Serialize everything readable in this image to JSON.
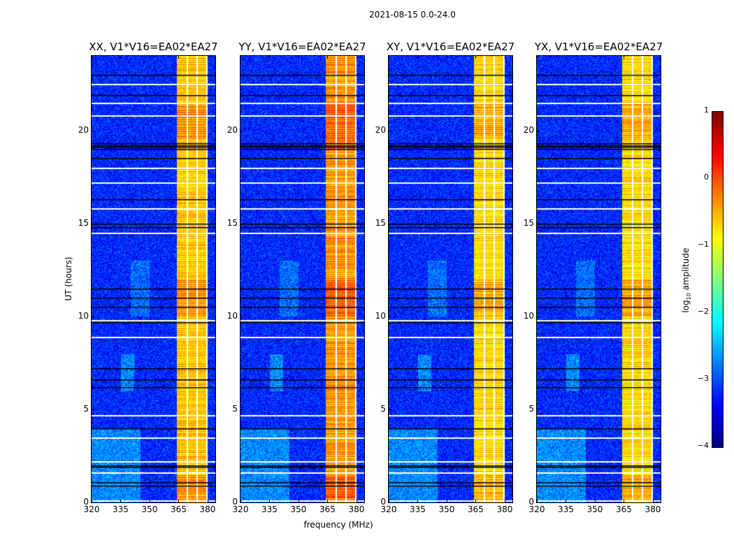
{
  "suptitle": "2021-08-15 0.0-24.0",
  "chart_data": {
    "type": "heatmap",
    "title": "2021-08-15 0.0-24.0",
    "xlabel": "frequency (MHz)",
    "ylabel": "UT (hours)",
    "xlim": [
      320,
      384
    ],
    "ylim": [
      0,
      24
    ],
    "xticks": [
      "320",
      "335",
      "350",
      "365",
      "380"
    ],
    "xtick_values": [
      320,
      335,
      350,
      365,
      380
    ],
    "yticks": [
      "0",
      "5",
      "10",
      "15",
      "20"
    ],
    "ytick_values": [
      0,
      5,
      10,
      15,
      20
    ],
    "panels": [
      {
        "title": "XX, V1*V16=EA02*EA27",
        "band_level": -0.7
      },
      {
        "title": "YY, V1*V16=EA02*EA27",
        "band_level": -0.45
      },
      {
        "title": "XY, V1*V16=EA02*EA27",
        "band_level": -0.8
      },
      {
        "title": "YX, V1*V16=EA02*EA27",
        "band_level": -0.8
      }
    ],
    "background_level": -3.2,
    "rfi_band_mhz": [
      364,
      380
    ],
    "channel_gaps_mhz": [
      369.2,
      374.2,
      379.3
    ],
    "flagged_black_hours": [
      0.9,
      1.1,
      1.9,
      2.0,
      4.0,
      6.2,
      6.6,
      7.2,
      9.7,
      10.5,
      11.0,
      11.5,
      14.8,
      15.0,
      16.3,
      18.5,
      19.0,
      19.1,
      19.2,
      19.3,
      21.9,
      23.0
    ],
    "flagged_white_hours": [
      0.1,
      1.6,
      2.2,
      3.5,
      4.7,
      8.9,
      9.8,
      14.5,
      15.8,
      17.2,
      18.0,
      20.8,
      21.5,
      22.5
    ],
    "colorbar": {
      "label_main": "log",
      "label_sub": "10",
      "label_rest": " amplitude",
      "range": [
        -4,
        1
      ],
      "ticks": [
        "1",
        "0",
        "−1",
        "−2",
        "−3",
        "−4"
      ],
      "tick_values": [
        1,
        0,
        -1,
        -2,
        -3,
        -4
      ],
      "colormap": "jet"
    }
  }
}
